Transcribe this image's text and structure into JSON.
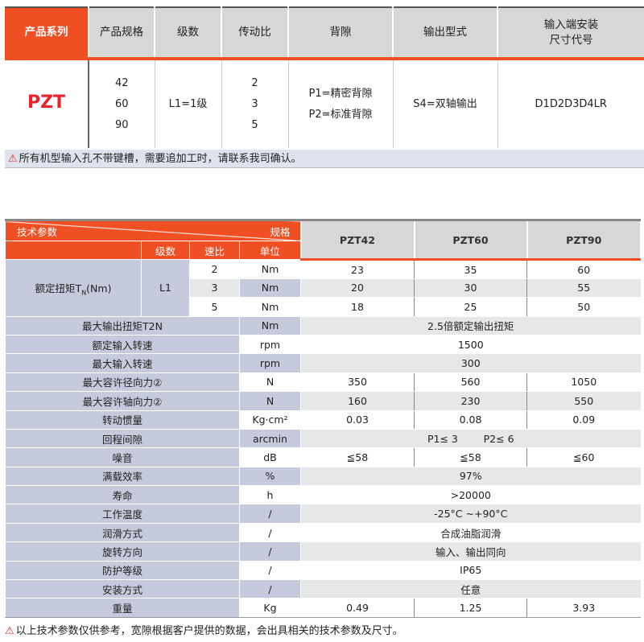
{
  "top_table": {
    "headers": [
      "产品系列",
      "产品规格",
      "级数",
      "传动比",
      "背隙",
      "输出型式",
      "输入端安装\n尺寸代号"
    ],
    "header_line1": "输入端安装",
    "header_line2": "尺寸代号",
    "series": "PZT",
    "sizes": [
      "42",
      "60",
      "90"
    ],
    "stages": "L1=1级",
    "ratios": [
      "2",
      "3",
      "5"
    ],
    "backlash": [
      "P1=精密背隙",
      "P2=标准背隙"
    ],
    "output": "S4=双轴输出",
    "input_code": "D1D2D3D4LR"
  },
  "note1": "所有机型输入孔不带键槽，需要追加工时，请联系我司确认。",
  "spec_table": {
    "corner_left": "技术参数",
    "corner_right": "规格",
    "sub_headers": [
      "级数",
      "速比",
      "单位"
    ],
    "models": [
      "PZT42",
      "PZT60",
      "PZT90"
    ],
    "torque": {
      "label": "额定扭矩T",
      "sub": "N",
      "unit_suffix": "(Nm)",
      "stage": "L1",
      "rows": [
        {
          "ratio": "2",
          "unit": "Nm",
          "values": [
            "23",
            "35",
            "60"
          ]
        },
        {
          "ratio": "3",
          "unit": "Nm",
          "values": [
            "20",
            "30",
            "55"
          ]
        },
        {
          "ratio": "5",
          "unit": "Nm",
          "values": [
            "18",
            "25",
            "50"
          ]
        }
      ]
    },
    "rows": [
      {
        "label": "最大输出扭矩T2N",
        "unit": "Nm",
        "merged": "2.5倍额定输出扭矩"
      },
      {
        "label": "额定输入转速",
        "unit": "rpm",
        "merged": "1500"
      },
      {
        "label": "最大输入转速",
        "unit": "rpm",
        "merged": "300"
      },
      {
        "label": "最大容许径向力②",
        "unit": "N",
        "values": [
          "350",
          "560",
          "1050"
        ]
      },
      {
        "label": "最大容许轴向力②",
        "unit": "N",
        "values": [
          "160",
          "230",
          "550"
        ]
      },
      {
        "label": "转动惯量",
        "unit": "Kg·cm²",
        "values": [
          "0.03",
          "0.08",
          "0.09"
        ]
      },
      {
        "label": "回程间隙",
        "unit": "arcmin",
        "merged": "P1≤ 3        P2≤ 6"
      },
      {
        "label": "噪音",
        "unit": "dB",
        "values": [
          "≦58",
          "≦58",
          "≦60"
        ]
      },
      {
        "label": "满载效率",
        "unit": "%",
        "merged": "97%"
      },
      {
        "label": "寿命",
        "unit": "h",
        "merged": ">20000"
      },
      {
        "label": "工作温度",
        "unit": "/",
        "merged": "-25°C ~+90°C"
      },
      {
        "label": "润滑方式",
        "unit": "/",
        "merged": "合成油脂润滑"
      },
      {
        "label": "旋转方向",
        "unit": "/",
        "merged": "输入、输出同向"
      },
      {
        "label": "防护等级",
        "unit": "/",
        "merged": "IP65"
      },
      {
        "label": "安装方式",
        "unit": "/",
        "merged": "任意"
      },
      {
        "label": "重量",
        "unit": "Kg",
        "values": [
          "0.49",
          "1.25",
          "3.93"
        ]
      }
    ]
  },
  "note2": "以上技术参数仅供参考，宽隙根据客户提供的数据，会出具相关的技术参数及尺寸。",
  "colors": {
    "accent": "#f04e23",
    "param_bg": "#c5cadc",
    "header_bg": "#d7d7d8",
    "series": "#e8222a"
  },
  "icons": {
    "warning": "warning-triangle-icon"
  }
}
